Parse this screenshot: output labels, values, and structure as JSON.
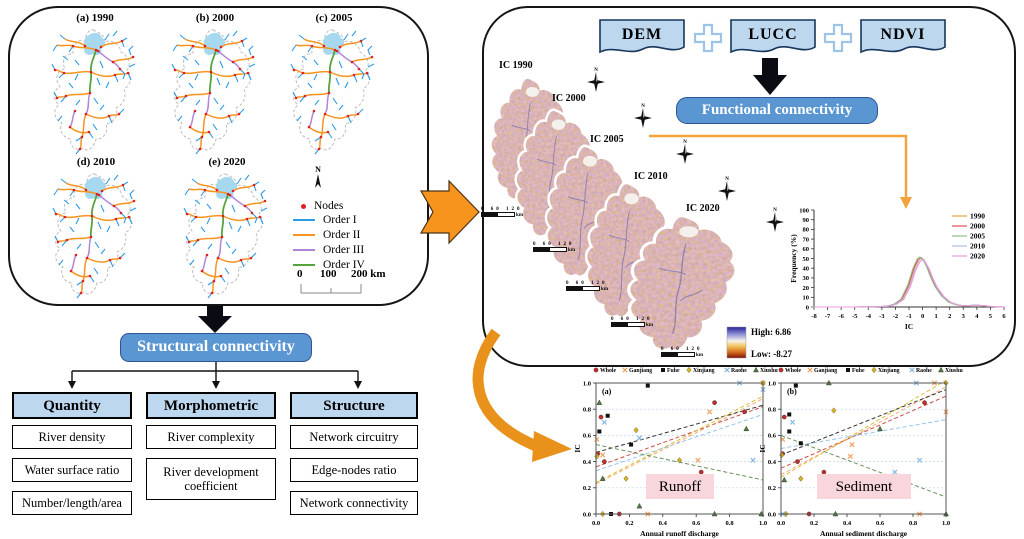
{
  "left_panel": {
    "map_labels": [
      "(a) 1990",
      "(b) 2000",
      "(c) 2005",
      "(d) 2010",
      "(e) 2020"
    ],
    "north_label": "N",
    "legend": {
      "nodes_label": "Nodes",
      "nodes_color": "#E02020",
      "orders": [
        {
          "label": "Order I",
          "color": "#2E9BE6"
        },
        {
          "label": "Order II",
          "color": "#F79420"
        },
        {
          "label": "Order III",
          "color": "#B186D6"
        },
        {
          "label": "Order IV",
          "color": "#55A33C"
        }
      ]
    },
    "scale_bar": {
      "labels": [
        "0",
        "100",
        "200 km"
      ]
    }
  },
  "structural": {
    "button_label": "Structural connectivity",
    "columns": [
      {
        "header": "Quantity",
        "items": [
          "River density",
          "Water surface ratio",
          "Number/length/area"
        ]
      },
      {
        "header": "Morphometric",
        "items": [
          "River complexity",
          "River development coefficient"
        ]
      },
      {
        "header": "Structure",
        "items": [
          "Network circuitry",
          "Edge-nodes ratio",
          "Network connectivity"
        ]
      }
    ]
  },
  "right_panel": {
    "inputs": [
      "DEM",
      "LUCC",
      "NDVI"
    ],
    "button_label": "Functional connectivity",
    "ic_map_labels": [
      "IC 1990",
      "IC 2000",
      "IC 2005",
      "IC 2010",
      "IC 2020"
    ],
    "ic_scale_label": "0  60  120",
    "ic_scale_unit": "km",
    "north_label": "N",
    "ramp": {
      "high_label": "High:  6.86",
      "low_label": "Low:  -8.27"
    }
  },
  "colors": {
    "accent_blue": "#5A96D2",
    "header_blue": "#BDD7EE",
    "arrow_orange": "#F7941D",
    "pink_label": "#F8D6DB"
  },
  "chart_data": [
    {
      "id": "frequency",
      "type": "line",
      "xlabel": "IC",
      "ylabel": "Frequency (%)",
      "xlim": [
        -8,
        6
      ],
      "ylim": [
        0,
        100
      ],
      "xticks": [
        -8,
        -7,
        -6,
        -5,
        -4,
        -3,
        -2,
        -1,
        0,
        1,
        2,
        3,
        4,
        5,
        6
      ],
      "yticks": [
        0,
        10,
        20,
        30,
        40,
        50,
        60,
        70,
        80,
        90,
        100
      ],
      "legend_position": "top-right",
      "grid": false,
      "curve_x": [
        -8,
        -7,
        -6,
        -5,
        -4,
        -3,
        -2.5,
        -2,
        -1.5,
        -1,
        -0.6,
        -0.3,
        -0.1,
        0.1,
        0.4,
        0.7,
        1,
        1.5,
        2,
        2.5,
        3,
        3.5,
        4,
        4.5,
        5,
        5.5,
        6
      ],
      "curve_y": [
        0,
        0,
        0,
        0,
        0.2,
        0.5,
        1,
        3,
        8,
        22,
        40,
        49,
        51,
        49,
        41,
        30,
        21,
        11,
        5,
        2.5,
        1.2,
        1.5,
        2,
        1.3,
        0.6,
        0.2,
        0
      ],
      "series": [
        {
          "name": "1990",
          "color": "#E7A33E",
          "dx": 0,
          "scale": 1.0
        },
        {
          "name": "2000",
          "color": "#E25050",
          "dx": -0.05,
          "scale": 0.99
        },
        {
          "name": "2005",
          "color": "#8FBF8F",
          "dx": -0.1,
          "scale": 1.01
        },
        {
          "name": "2010",
          "color": "#AEBCEC",
          "dx": 0.05,
          "scale": 0.97
        },
        {
          "name": "2020",
          "color": "#EE9ADF",
          "dx": 0.1,
          "scale": 0.95
        }
      ]
    },
    {
      "id": "runoff",
      "type": "scatter",
      "panel_label": "(a)",
      "box_label": "Runoff",
      "xlabel": "Annual runoff  discharge",
      "ylabel": "IC",
      "xlim": [
        0,
        1
      ],
      "ylim": [
        0,
        1
      ],
      "xticks": [
        0,
        0.2,
        0.4,
        0.6,
        0.8,
        1
      ],
      "yticks": [
        0,
        0.2,
        0.4,
        0.6,
        0.8,
        1
      ],
      "grid": "horizontal-dashed",
      "series": [
        {
          "name": "Whole",
          "marker": "circle",
          "color": "#C92A2A",
          "points": [
            [
              0.01,
              0.46
            ],
            [
              0.03,
              0.74
            ],
            [
              0.05,
              0.4
            ],
            [
              0.14,
              0.0
            ],
            [
              0.63,
              0.32
            ],
            [
              0.71,
              0.85
            ],
            [
              0.89,
              0.78
            ]
          ],
          "trend": [
            0.36,
            0.82
          ]
        },
        {
          "name": "Ganjiang",
          "marker": "x",
          "color": "#F2A05E",
          "points": [
            [
              0.005,
              0.57
            ],
            [
              0.04,
              0.45
            ],
            [
              0.31,
              0.0
            ],
            [
              0.61,
              0.41
            ],
            [
              0.68,
              0.78
            ],
            [
              1.0,
              1.0
            ]
          ],
          "trend": [
            0.23,
            0.88
          ]
        },
        {
          "name": "Fuhe",
          "marker": "square",
          "color": "#111111",
          "points": [
            [
              0.02,
              0.63
            ],
            [
              0.07,
              0.75
            ],
            [
              0.09,
              0.0
            ],
            [
              0.21,
              0.53
            ],
            [
              0.31,
              0.98
            ],
            [
              0.59,
              0.26
            ]
          ],
          "trend": [
            0.47,
            0.83
          ]
        },
        {
          "name": "Xinjiang",
          "marker": "diamond",
          "color": "#D9B216",
          "points": [
            [
              0.005,
              0.44
            ],
            [
              0.04,
              0.0
            ],
            [
              0.18,
              0.27
            ],
            [
              0.24,
              0.64
            ],
            [
              0.5,
              0.41
            ],
            [
              1.0,
              1.0
            ]
          ],
          "trend": [
            0.24,
            0.9
          ]
        },
        {
          "name": "Raohe",
          "marker": "x",
          "color": "#85B8E8",
          "points": [
            [
              0.05,
              0.7
            ],
            [
              0.26,
              0.58
            ],
            [
              0.86,
              1.0
            ],
            [
              0.94,
              0.41
            ],
            [
              1.0,
              0.95
            ]
          ],
          "trend": [
            0.33,
            0.76
          ]
        },
        {
          "name": "Xiushui",
          "marker": "triangle",
          "color": "#4E7E3F",
          "points": [
            [
              0.02,
              0.85
            ],
            [
              0.04,
              0.27
            ],
            [
              0.26,
              0.06
            ],
            [
              0.71,
              0.0
            ],
            [
              0.9,
              0.65
            ],
            [
              0.99,
              0.0
            ]
          ],
          "trend": [
            0.53,
            0.26
          ]
        }
      ]
    },
    {
      "id": "sediment",
      "type": "scatter",
      "panel_label": "(b)",
      "box_label": "Sediment",
      "xlabel": "Annual sediment  discharge",
      "ylabel": "IC",
      "xlim": [
        0,
        1
      ],
      "ylim": [
        0,
        1
      ],
      "xticks": [
        0,
        0.2,
        0.4,
        0.6,
        0.8,
        1
      ],
      "yticks": [
        0,
        0.2,
        0.4,
        0.6,
        0.8,
        1
      ],
      "grid": "horizontal-dashed",
      "series": [
        {
          "name": "Whole",
          "marker": "circle",
          "color": "#C92A2A",
          "points": [
            [
              0.01,
              0.46
            ],
            [
              0.02,
              0.74
            ],
            [
              0.1,
              0.4
            ],
            [
              0.17,
              0.0
            ],
            [
              0.26,
              0.32
            ],
            [
              0.87,
              0.85
            ]
          ],
          "trend": [
            0.35,
            0.9
          ]
        },
        {
          "name": "Ganjiang",
          "marker": "x",
          "color": "#F2A05E",
          "points": [
            [
              0.01,
              0.57
            ],
            [
              0.42,
              0.44
            ],
            [
              0.43,
              0.53
            ],
            [
              0.84,
              0.0
            ],
            [
              0.93,
              1.0
            ],
            [
              1.0,
              0.78
            ]
          ],
          "trend": [
            0.3,
            0.97
          ]
        },
        {
          "name": "Fuhe",
          "marker": "square",
          "color": "#111111",
          "points": [
            [
              0.05,
              0.76
            ],
            [
              0.05,
              0.63
            ],
            [
              0.09,
              0.98
            ],
            [
              0.12,
              0.54
            ],
            [
              0.37,
              0.26
            ]
          ],
          "trend": [
            0.45,
            0.95
          ]
        },
        {
          "name": "Xinjiang",
          "marker": "diamond",
          "color": "#D9B216",
          "points": [
            [
              0.005,
              0.45
            ],
            [
              0.03,
              0.0
            ],
            [
              0.12,
              0.27
            ],
            [
              0.32,
              0.79
            ],
            [
              1.0,
              1.0
            ]
          ],
          "trend": [
            0.28,
            1.02
          ]
        },
        {
          "name": "Raohe",
          "marker": "x",
          "color": "#85B8E8",
          "points": [
            [
              0.01,
              0.0
            ],
            [
              0.07,
              0.7
            ],
            [
              0.69,
              0.32
            ],
            [
              0.82,
              1.0
            ],
            [
              0.84,
              0.41
            ]
          ],
          "trend": [
            0.5,
            0.72
          ]
        },
        {
          "name": "Xiushui",
          "marker": "triangle",
          "color": "#4E7E3F",
          "points": [
            [
              0.02,
              0.26
            ],
            [
              0.29,
              1.0
            ],
            [
              0.33,
              0.0
            ],
            [
              0.6,
              0.65
            ],
            [
              1.0,
              0.0
            ]
          ],
          "trend": [
            0.6,
            0.13
          ]
        }
      ]
    }
  ]
}
